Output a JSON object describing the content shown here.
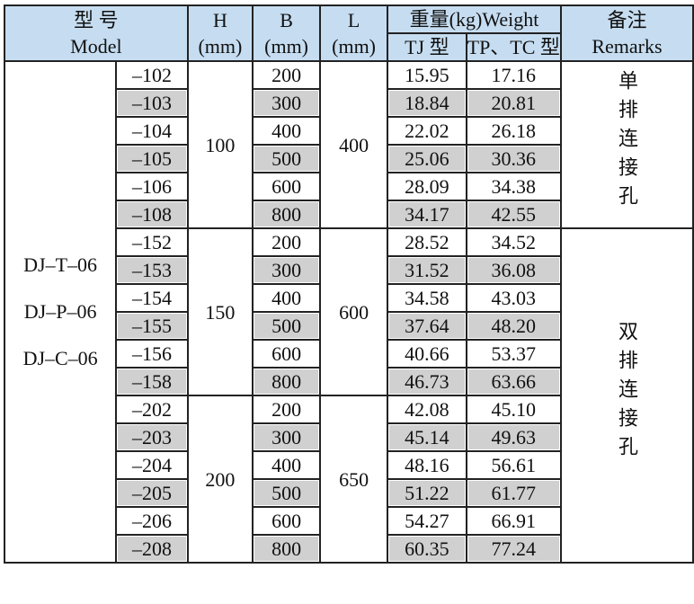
{
  "header": {
    "model": "型 号",
    "model_en": "Model",
    "columns": [
      {
        "label": "H",
        "unit": "(mm)"
      },
      {
        "label": "B",
        "unit": "(mm)"
      },
      {
        "label": "L",
        "unit": "(mm)"
      }
    ],
    "weight": "重量(kg)Weight",
    "tj": "TJ 型",
    "tp": "TP、TC 型",
    "remarks": "备注",
    "remarks_en": "Remarks"
  },
  "models": [
    "DJ–T–06",
    "DJ–P–06",
    "DJ–C–06"
  ],
  "groups": [
    {
      "h": "100",
      "l": "400",
      "rows": [
        {
          "code": "–102",
          "b": "200",
          "tj": "15.95",
          "tp": "17.16"
        },
        {
          "code": "–103",
          "b": "300",
          "tj": "18.84",
          "tp": "20.81"
        },
        {
          "code": "–104",
          "b": "400",
          "tj": "22.02",
          "tp": "26.18"
        },
        {
          "code": "–105",
          "b": "500",
          "tj": "25.06",
          "tp": "30.36"
        },
        {
          "code": "–106",
          "b": "600",
          "tj": "28.09",
          "tp": "34.38"
        },
        {
          "code": "–108",
          "b": "800",
          "tj": "34.17",
          "tp": "42.55"
        }
      ]
    },
    {
      "h": "150",
      "l": "600",
      "rows": [
        {
          "code": "–152",
          "b": "200",
          "tj": "28.52",
          "tp": "34.52"
        },
        {
          "code": "–153",
          "b": "300",
          "tj": "31.52",
          "tp": "36.08"
        },
        {
          "code": "–154",
          "b": "400",
          "tj": "34.58",
          "tp": "43.03"
        },
        {
          "code": "–155",
          "b": "500",
          "tj": "37.64",
          "tp": "48.20"
        },
        {
          "code": "–156",
          "b": "600",
          "tj": "40.66",
          "tp": "53.37"
        },
        {
          "code": "–158",
          "b": "800",
          "tj": "46.73",
          "tp": "63.66"
        }
      ]
    },
    {
      "h": "200",
      "l": "650",
      "rows": [
        {
          "code": "–202",
          "b": "200",
          "tj": "42.08",
          "tp": "45.10"
        },
        {
          "code": "–203",
          "b": "300",
          "tj": "45.14",
          "tp": "49.63"
        },
        {
          "code": "–204",
          "b": "400",
          "tj": "48.16",
          "tp": "56.61"
        },
        {
          "code": "–205",
          "b": "500",
          "tj": "51.22",
          "tp": "61.77"
        },
        {
          "code": "–206",
          "b": "600",
          "tj": "54.27",
          "tp": "66.91"
        },
        {
          "code": "–208",
          "b": "800",
          "tj": "60.35",
          "tp": "77.24"
        }
      ]
    }
  ],
  "remarks": [
    "单排连接孔",
    "双排连接孔"
  ]
}
